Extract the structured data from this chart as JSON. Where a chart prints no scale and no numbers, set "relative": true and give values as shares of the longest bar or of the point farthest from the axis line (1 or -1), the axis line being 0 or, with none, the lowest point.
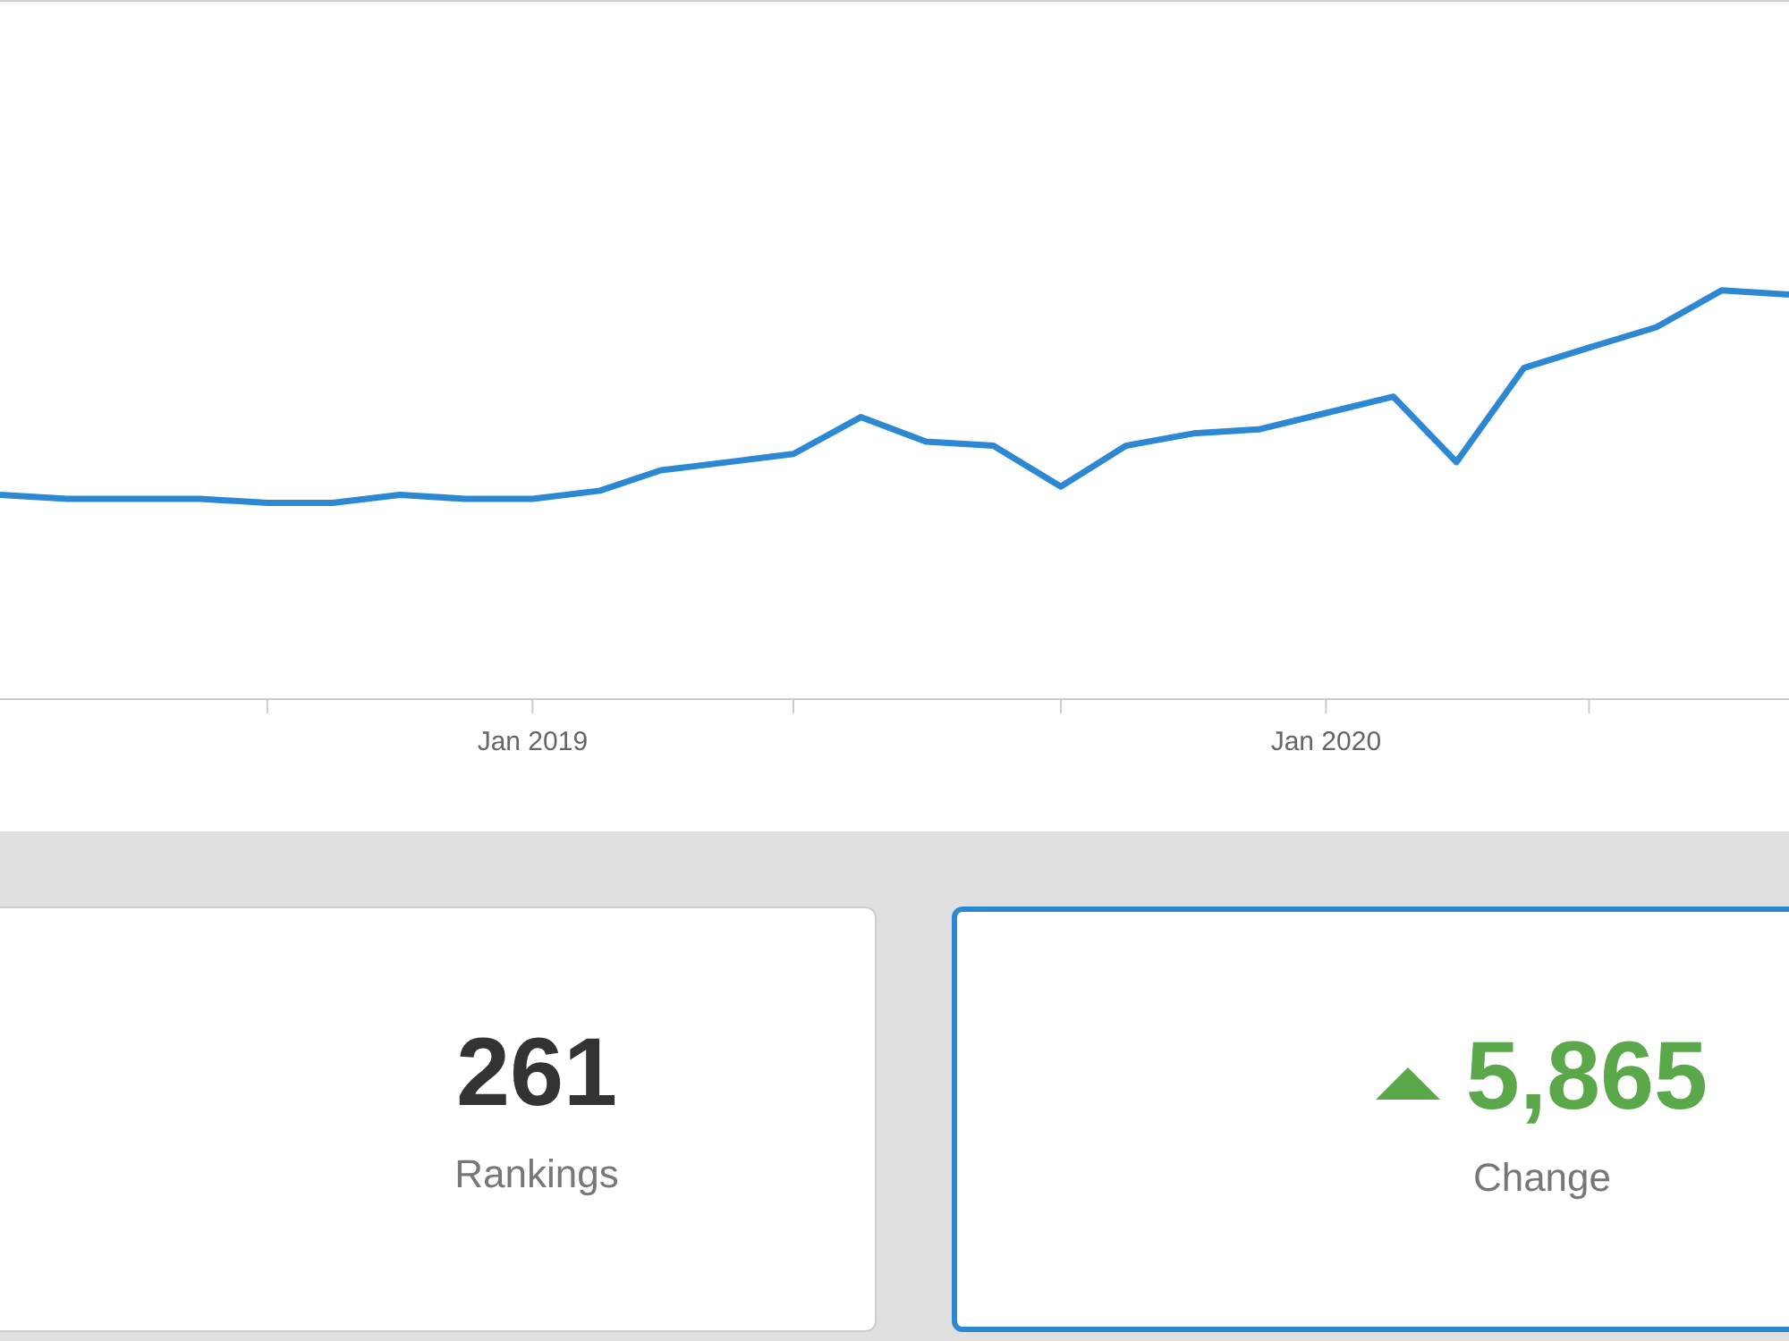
{
  "chart_data": [
    {
      "type": "line",
      "relative": true,
      "x": [
        "2018-05",
        "2018-06",
        "2018-07",
        "2018-08",
        "2018-09",
        "2018-10",
        "2018-11",
        "2018-12",
        "2019-01",
        "2019-02",
        "2019-03",
        "2019-04",
        "2019-05",
        "2019-06",
        "2019-07",
        "2019-08",
        "2019-09",
        "2019-10",
        "2019-11",
        "2019-12",
        "2020-01",
        "2020-02",
        "2020-03",
        "2020-04",
        "2020-05",
        "2020-06",
        "2020-07",
        "2020-08"
      ],
      "series": [
        {
          "color": "#2d88d4",
          "values": [
            0.5,
            0.49,
            0.49,
            0.49,
            0.48,
            0.48,
            0.5,
            0.49,
            0.49,
            0.51,
            0.56,
            0.58,
            0.6,
            0.69,
            0.63,
            0.62,
            0.52,
            0.62,
            0.65,
            0.66,
            0.7,
            0.74,
            0.58,
            0.81,
            0.86,
            0.91,
            1.0,
            0.99
          ]
        }
      ],
      "xlim": [
        "2018-05",
        "2020-08"
      ],
      "xticks": [
        {
          "value": "2018-09",
          "label": null
        },
        {
          "value": "2019-01",
          "label": "Jan 2019"
        },
        {
          "value": "2019-05",
          "label": null
        },
        {
          "value": "2019-09",
          "label": null
        },
        {
          "value": "2020-01",
          "label": "Jan 2020"
        },
        {
          "value": "2020-05",
          "label": null
        }
      ],
      "marker": "none",
      "line_style": "solid"
    },
    {
      "type": "other",
      "annotations": [
        "261",
        "Rankings",
        "5,865",
        "Change"
      ]
    }
  ]
}
